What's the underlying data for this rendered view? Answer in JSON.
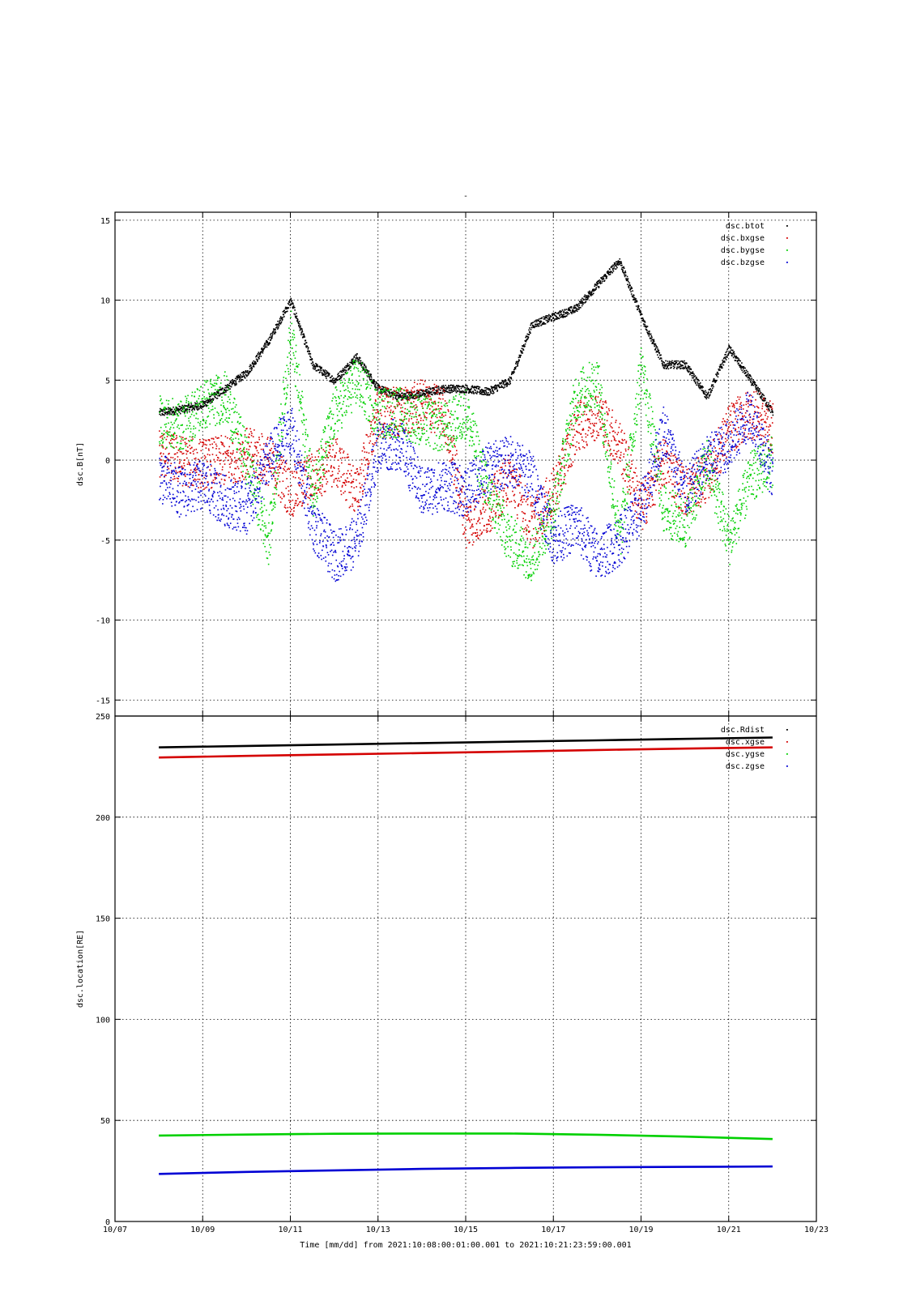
{
  "figure_title": "-",
  "xlabel": "Time [mm/dd]  from 2021:10:08:00:01:00.001  to  2021:10:21:23:59:00.001",
  "chart_data": [
    {
      "type": "scatter",
      "ylabel": "dsc.B[nT]",
      "ylim": [
        -16,
        15.5
      ],
      "yticks": [
        15,
        10,
        5,
        0,
        -5,
        -10,
        -15
      ],
      "xlim": [
        "10/07",
        "10/23"
      ],
      "xticks": [
        "10/07",
        "10/09",
        "10/11",
        "10/13",
        "10/15",
        "10/17",
        "10/19",
        "10/21",
        "10/23"
      ],
      "grid": true,
      "legend_position": "top-right",
      "x": [
        "10/08",
        "10/08 12h",
        "10/09",
        "10/09 12h",
        "10/10",
        "10/10 12h",
        "10/11",
        "10/11 12h",
        "10/12",
        "10/12 12h",
        "10/13",
        "10/13 12h",
        "10/14",
        "10/14 12h",
        "10/15",
        "10/15 12h",
        "10/16",
        "10/16 12h",
        "10/17",
        "10/17 12h",
        "10/18",
        "10/18 12h",
        "10/19",
        "10/19 12h",
        "10/20",
        "10/20 12h",
        "10/21",
        "10/21 12h",
        "10/22"
      ],
      "series": [
        {
          "name": "dsc.btot",
          "color": "#000000",
          "values": [
            3,
            3.2,
            3.5,
            4.5,
            5.5,
            7.5,
            10,
            6,
            5,
            6.5,
            4.5,
            4,
            4.2,
            4.5,
            4.5,
            4.3,
            5,
            8.5,
            9,
            9.5,
            11,
            12.5,
            9,
            6,
            6,
            4,
            7,
            5,
            3
          ]
        },
        {
          "name": "dsc.bxgse",
          "color": "#d40000",
          "values": [
            0.5,
            0,
            -0.2,
            0,
            0.5,
            0,
            -2,
            -1,
            0,
            -2,
            3,
            3,
            3.5,
            3,
            -4,
            -3,
            -1,
            -4,
            -2,
            2,
            3,
            1,
            -3,
            0,
            -2,
            -1,
            2,
            3,
            2
          ]
        },
        {
          "name": "dsc.bygse",
          "color": "#00d000",
          "values": [
            2.5,
            2.2,
            3.5,
            4,
            0,
            -5,
            8,
            -2,
            3,
            5,
            3,
            3,
            2.5,
            2,
            3,
            -2,
            -5,
            -6,
            -3,
            4,
            5,
            -5,
            6,
            -3,
            -4,
            0,
            -5,
            -1,
            0
          ]
        },
        {
          "name": "dsc.bzgse",
          "color": "#0000d4",
          "values": [
            -1,
            -2,
            -1.5,
            -2.5,
            -3,
            0,
            2,
            -4,
            -6,
            -5,
            1,
            1,
            -2,
            -1.5,
            -2,
            -0.5,
            0,
            -1,
            -5,
            -4,
            -6,
            -5,
            -3,
            2,
            -2,
            0,
            1,
            3,
            -1
          ]
        }
      ]
    },
    {
      "type": "line",
      "ylabel": "dsc.location[RE]",
      "ylim": [
        0,
        250
      ],
      "yticks": [
        250,
        200,
        150,
        100,
        50,
        0
      ],
      "xlim": [
        "10/07",
        "10/23"
      ],
      "xticks": [
        "10/07",
        "10/09",
        "10/11",
        "10/13",
        "10/15",
        "10/17",
        "10/19",
        "10/21",
        "10/23"
      ],
      "grid": true,
      "legend_position": "top-right",
      "x": [
        "10/08",
        "10/10",
        "10/12",
        "10/14",
        "10/16",
        "10/18",
        "10/20",
        "10/22"
      ],
      "series": [
        {
          "name": "dsc.Rdist",
          "color": "#000000",
          "values": [
            234.5,
            235.2,
            235.9,
            236.6,
            237.3,
            238,
            238.7,
            239.4
          ]
        },
        {
          "name": "dsc.xgse",
          "color": "#d40000",
          "values": [
            229.5,
            230.3,
            231,
            231.7,
            232.4,
            233.2,
            233.9,
            234.5
          ]
        },
        {
          "name": "dsc.ygse",
          "color": "#00d000",
          "values": [
            42.5,
            43,
            43.4,
            43.5,
            43.5,
            42.9,
            42,
            40.8
          ]
        },
        {
          "name": "dsc.zgse",
          "color": "#0000d4",
          "values": [
            23.5,
            24.5,
            25.3,
            26,
            26.5,
            26.8,
            27,
            27.2
          ]
        }
      ]
    }
  ]
}
